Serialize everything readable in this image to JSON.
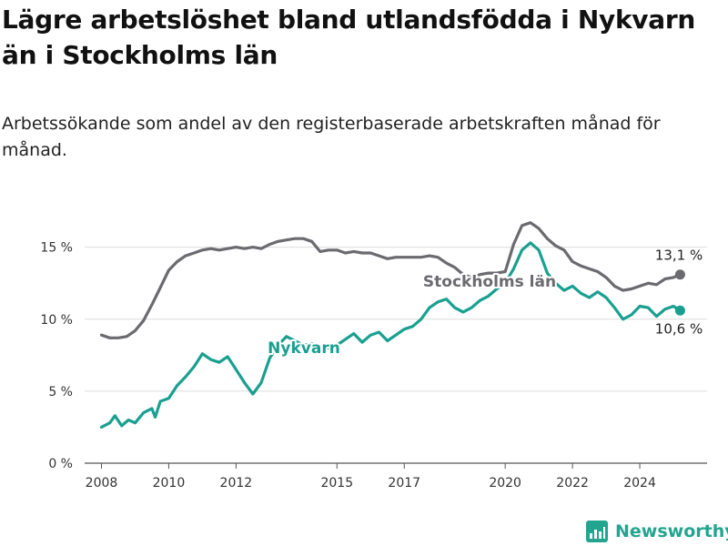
{
  "title": "Lägre arbetslöshet bland utlandsfödda i Nykvarn än i Stockholms län",
  "subtitle": "Arbetssökande som andel av den registerbaserade arbetskraften månad för månad.",
  "logo": {
    "text": "Newsworthy",
    "color": "#22a58f",
    "icon": "bar-chart-logo-icon"
  },
  "chart_data": {
    "type": "line",
    "title": "Lägre arbetslöshet bland utlandsfödda i Nykvarn än i Stockholms län",
    "subtitle": "Arbetssökande som andel av den registerbaserade arbetskraften månad för månad.",
    "xlabel": "",
    "ylabel": "",
    "y_unit": "%",
    "ylim": [
      0,
      17
    ],
    "xlim": [
      2007.5,
      2026.0
    ],
    "y_ticks": [
      0,
      5,
      10,
      15
    ],
    "y_tick_labels": [
      "0 %",
      "5 %",
      "10 %",
      "15 %"
    ],
    "x_ticks": [
      2008,
      2010,
      2012,
      2015,
      2017,
      2020,
      2022,
      2024
    ],
    "x_tick_labels": [
      "2008",
      "2010",
      "2012",
      "2015",
      "2017",
      "2020",
      "2022",
      "2024"
    ],
    "grid": "horizontal",
    "legend": "none",
    "series": [
      {
        "name": "Stockholms län",
        "color": "#6b6a6f",
        "end_label": "13,1 %",
        "points": [
          [
            2008.0,
            8.9
          ],
          [
            2008.25,
            8.7
          ],
          [
            2008.5,
            8.7
          ],
          [
            2008.75,
            8.8
          ],
          [
            2009.0,
            9.2
          ],
          [
            2009.25,
            9.9
          ],
          [
            2009.5,
            11.0
          ],
          [
            2009.75,
            12.2
          ],
          [
            2010.0,
            13.4
          ],
          [
            2010.25,
            14.0
          ],
          [
            2010.5,
            14.4
          ],
          [
            2010.75,
            14.6
          ],
          [
            2011.0,
            14.8
          ],
          [
            2011.25,
            14.9
          ],
          [
            2011.5,
            14.8
          ],
          [
            2011.75,
            14.9
          ],
          [
            2012.0,
            15.0
          ],
          [
            2012.25,
            14.9
          ],
          [
            2012.5,
            15.0
          ],
          [
            2012.75,
            14.9
          ],
          [
            2013.0,
            15.2
          ],
          [
            2013.25,
            15.4
          ],
          [
            2013.5,
            15.5
          ],
          [
            2013.75,
            15.6
          ],
          [
            2014.0,
            15.6
          ],
          [
            2014.25,
            15.4
          ],
          [
            2014.5,
            14.7
          ],
          [
            2014.75,
            14.8
          ],
          [
            2015.0,
            14.8
          ],
          [
            2015.25,
            14.6
          ],
          [
            2015.5,
            14.7
          ],
          [
            2015.75,
            14.6
          ],
          [
            2016.0,
            14.6
          ],
          [
            2016.25,
            14.4
          ],
          [
            2016.5,
            14.2
          ],
          [
            2016.75,
            14.3
          ],
          [
            2017.0,
            14.3
          ],
          [
            2017.25,
            14.3
          ],
          [
            2017.5,
            14.3
          ],
          [
            2017.75,
            14.4
          ],
          [
            2018.0,
            14.3
          ],
          [
            2018.25,
            13.9
          ],
          [
            2018.5,
            13.6
          ],
          [
            2018.75,
            13.1
          ],
          [
            2019.0,
            12.9
          ],
          [
            2019.25,
            13.1
          ],
          [
            2019.5,
            13.2
          ],
          [
            2019.75,
            13.2
          ],
          [
            2020.0,
            13.3
          ],
          [
            2020.25,
            15.2
          ],
          [
            2020.5,
            16.5
          ],
          [
            2020.75,
            16.7
          ],
          [
            2021.0,
            16.3
          ],
          [
            2021.25,
            15.6
          ],
          [
            2021.5,
            15.1
          ],
          [
            2021.75,
            14.8
          ],
          [
            2022.0,
            14.0
          ],
          [
            2022.25,
            13.7
          ],
          [
            2022.5,
            13.5
          ],
          [
            2022.75,
            13.3
          ],
          [
            2023.0,
            12.9
          ],
          [
            2023.25,
            12.3
          ],
          [
            2023.5,
            12.0
          ],
          [
            2023.75,
            12.1
          ],
          [
            2024.0,
            12.3
          ],
          [
            2024.25,
            12.5
          ],
          [
            2024.5,
            12.4
          ],
          [
            2024.75,
            12.8
          ],
          [
            2025.0,
            12.9
          ],
          [
            2025.2,
            13.1
          ]
        ]
      },
      {
        "name": "Nykvarn",
        "color": "#1aa090",
        "end_label": "10,6 %",
        "points": [
          [
            2008.0,
            2.5
          ],
          [
            2008.25,
            2.8
          ],
          [
            2008.4,
            3.3
          ],
          [
            2008.6,
            2.6
          ],
          [
            2008.8,
            3.0
          ],
          [
            2009.0,
            2.8
          ],
          [
            2009.25,
            3.5
          ],
          [
            2009.5,
            3.8
          ],
          [
            2009.6,
            3.2
          ],
          [
            2009.75,
            4.3
          ],
          [
            2010.0,
            4.5
          ],
          [
            2010.25,
            5.4
          ],
          [
            2010.5,
            6.0
          ],
          [
            2010.75,
            6.7
          ],
          [
            2011.0,
            7.6
          ],
          [
            2011.25,
            7.2
          ],
          [
            2011.5,
            7.0
          ],
          [
            2011.75,
            7.4
          ],
          [
            2012.0,
            6.5
          ],
          [
            2012.25,
            5.6
          ],
          [
            2012.5,
            4.8
          ],
          [
            2012.75,
            5.6
          ],
          [
            2013.0,
            7.3
          ],
          [
            2013.25,
            8.2
          ],
          [
            2013.5,
            8.8
          ],
          [
            2013.75,
            8.5
          ],
          [
            2014.0,
            8.2
          ],
          [
            2014.25,
            8.3
          ],
          [
            2014.5,
            8.0
          ],
          [
            2014.75,
            8.0
          ],
          [
            2015.0,
            8.2
          ],
          [
            2015.25,
            8.6
          ],
          [
            2015.5,
            9.0
          ],
          [
            2015.75,
            8.4
          ],
          [
            2016.0,
            8.9
          ],
          [
            2016.25,
            9.1
          ],
          [
            2016.5,
            8.5
          ],
          [
            2016.75,
            8.9
          ],
          [
            2017.0,
            9.3
          ],
          [
            2017.25,
            9.5
          ],
          [
            2017.5,
            10.0
          ],
          [
            2017.75,
            10.8
          ],
          [
            2018.0,
            11.2
          ],
          [
            2018.25,
            11.4
          ],
          [
            2018.5,
            10.8
          ],
          [
            2018.75,
            10.5
          ],
          [
            2019.0,
            10.8
          ],
          [
            2019.25,
            11.3
          ],
          [
            2019.5,
            11.6
          ],
          [
            2019.75,
            12.1
          ],
          [
            2020.0,
            12.5
          ],
          [
            2020.25,
            13.5
          ],
          [
            2020.5,
            14.8
          ],
          [
            2020.75,
            15.3
          ],
          [
            2021.0,
            14.8
          ],
          [
            2021.25,
            13.2
          ],
          [
            2021.5,
            12.5
          ],
          [
            2021.75,
            12.0
          ],
          [
            2022.0,
            12.3
          ],
          [
            2022.25,
            11.8
          ],
          [
            2022.5,
            11.5
          ],
          [
            2022.75,
            11.9
          ],
          [
            2023.0,
            11.5
          ],
          [
            2023.25,
            10.8
          ],
          [
            2023.5,
            10.0
          ],
          [
            2023.75,
            10.3
          ],
          [
            2024.0,
            10.9
          ],
          [
            2024.25,
            10.8
          ],
          [
            2024.5,
            10.2
          ],
          [
            2024.75,
            10.7
          ],
          [
            2025.0,
            10.9
          ],
          [
            2025.2,
            10.6
          ]
        ]
      }
    ]
  }
}
